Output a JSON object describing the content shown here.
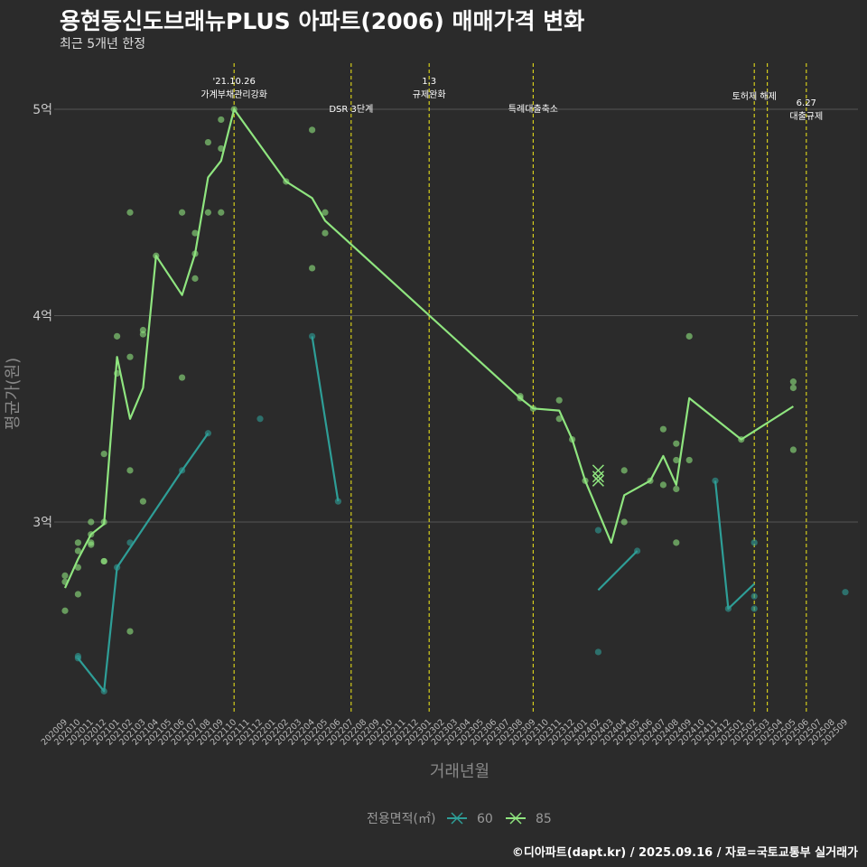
{
  "title": "용현동신도브래뉴PLUS 아파트(2006) 매매가격 변화",
  "subtitle": "최근 5개년 한정",
  "credit": "©디아파트(dapt.kr) / 2025.09.16 / 자료=국토교통부 실거래가",
  "colors": {
    "s60": "#2e9e97",
    "s85": "#8fe57f",
    "vline": "#d4cc1c",
    "grid": "#555555"
  },
  "chart_data": {
    "type": "line",
    "xlabel": "거래년월",
    "ylabel": "평균가(원)",
    "ylim": [
      2.0,
      5.3
    ],
    "yticks": [
      {
        "v": 3,
        "label": "3억"
      },
      {
        "v": 4,
        "label": "4억"
      },
      {
        "v": 5,
        "label": "5억"
      }
    ],
    "categories": [
      "202009",
      "202010",
      "202011",
      "202012",
      "202101",
      "202102",
      "202103",
      "202104",
      "202105",
      "202106",
      "202107",
      "202108",
      "202109",
      "202110",
      "202111",
      "202112",
      "202201",
      "202202",
      "202203",
      "202204",
      "202205",
      "202206",
      "202207",
      "202208",
      "202209",
      "202210",
      "202211",
      "202212",
      "202301",
      "202302",
      "202303",
      "202304",
      "202305",
      "202306",
      "202307",
      "202308",
      "202309",
      "202310",
      "202311",
      "202312",
      "202401",
      "202402",
      "202403",
      "202404",
      "202405",
      "202406",
      "202407",
      "202408",
      "202409",
      "202410",
      "202411",
      "202412",
      "202501",
      "202502",
      "202503",
      "202504",
      "202505",
      "202506",
      "202507",
      "202508",
      "202509"
    ],
    "legend": {
      "title": "전용면적(㎡)",
      "items": [
        "60",
        "85"
      ]
    },
    "series": [
      {
        "name": "60",
        "segments": [
          [
            [
              1,
              2.34
            ],
            [
              3,
              2.18
            ],
            [
              4,
              2.78
            ],
            [
              9,
              3.25
            ],
            [
              11,
              3.43
            ]
          ],
          [
            [
              19,
              3.9
            ],
            [
              21,
              3.1
            ]
          ],
          [
            [
              41,
              2.67
            ],
            [
              44,
              2.86
            ]
          ],
          [
            [
              50,
              3.2
            ],
            [
              51,
              2.58
            ],
            [
              53,
              2.7
            ]
          ]
        ],
        "points": [
          [
            1,
            2.35
          ],
          [
            1,
            2.34
          ],
          [
            3,
            2.18
          ],
          [
            4,
            2.78
          ],
          [
            5,
            2.9
          ],
          [
            9,
            3.25
          ],
          [
            11,
            3.43
          ],
          [
            15,
            3.5
          ],
          [
            19,
            3.9
          ],
          [
            21,
            3.1
          ],
          [
            41,
            2.96
          ],
          [
            41,
            2.37
          ],
          [
            44,
            2.86
          ],
          [
            50,
            3.2
          ],
          [
            51,
            2.58
          ],
          [
            53,
            2.9
          ],
          [
            53,
            2.64
          ],
          [
            53,
            2.58
          ],
          [
            60,
            2.66
          ]
        ]
      },
      {
        "name": "85",
        "segments": [
          [
            [
              0,
              2.68
            ],
            [
              1,
              2.82
            ],
            [
              2,
              2.94
            ],
            [
              3,
              2.99
            ],
            [
              4,
              3.8
            ],
            [
              5,
              3.5
            ],
            [
              6,
              3.65
            ],
            [
              7,
              4.29
            ],
            [
              9,
              4.1
            ],
            [
              10,
              4.3
            ],
            [
              11,
              4.67
            ],
            [
              12,
              4.75
            ],
            [
              13,
              5.0
            ],
            [
              17,
              4.65
            ],
            [
              19,
              4.57
            ],
            [
              20,
              4.46
            ],
            [
              35,
              3.6
            ],
            [
              36,
              3.55
            ],
            [
              38,
              3.54
            ],
            [
              39,
              3.4
            ],
            [
              40,
              3.2
            ],
            [
              42,
              2.9
            ],
            [
              43,
              3.13
            ],
            [
              45,
              3.2
            ],
            [
              46,
              3.32
            ],
            [
              47,
              3.18
            ],
            [
              48,
              3.6
            ],
            [
              52,
              3.4
            ],
            [
              56,
              3.56
            ]
          ]
        ],
        "points": [
          [
            0,
            2.74
          ],
          [
            0,
            2.71
          ],
          [
            0,
            2.57
          ],
          [
            1,
            2.9
          ],
          [
            1,
            2.86
          ],
          [
            1,
            2.78
          ],
          [
            1,
            2.65
          ],
          [
            2,
            3.0
          ],
          [
            2,
            2.94
          ],
          [
            2,
            2.9
          ],
          [
            2,
            2.89
          ],
          [
            3,
            3.33
          ],
          [
            3,
            3.0
          ],
          [
            3,
            2.81
          ],
          [
            3,
            2.81
          ],
          [
            4,
            3.9
          ],
          [
            4,
            3.72
          ],
          [
            5,
            4.5
          ],
          [
            5,
            3.8
          ],
          [
            5,
            3.25
          ],
          [
            5,
            2.47
          ],
          [
            6,
            3.93
          ],
          [
            6,
            3.91
          ],
          [
            6,
            3.1
          ],
          [
            7,
            4.29
          ],
          [
            9,
            4.5
          ],
          [
            9,
            3.7
          ],
          [
            10,
            4.4
          ],
          [
            10,
            4.3
          ],
          [
            10,
            4.18
          ],
          [
            11,
            4.84
          ],
          [
            11,
            4.5
          ],
          [
            12,
            4.95
          ],
          [
            12,
            4.81
          ],
          [
            12,
            4.5
          ],
          [
            13,
            5.0
          ],
          [
            17,
            4.65
          ],
          [
            19,
            4.9
          ],
          [
            19,
            4.23
          ],
          [
            20,
            4.5
          ],
          [
            20,
            4.4
          ],
          [
            35,
            3.61
          ],
          [
            35,
            3.6
          ],
          [
            36,
            3.55
          ],
          [
            38,
            3.59
          ],
          [
            38,
            3.5
          ],
          [
            39,
            3.4
          ],
          [
            40,
            3.2
          ],
          [
            43,
            3.25
          ],
          [
            43,
            3.0
          ],
          [
            45,
            3.2
          ],
          [
            46,
            3.45
          ],
          [
            46,
            3.18
          ],
          [
            47,
            3.38
          ],
          [
            47,
            3.3
          ],
          [
            47,
            3.16
          ],
          [
            47,
            2.9
          ],
          [
            48,
            3.9
          ],
          [
            48,
            3.3
          ],
          [
            52,
            3.4
          ],
          [
            56,
            3.68
          ],
          [
            56,
            3.65
          ],
          [
            56,
            3.35
          ]
        ],
        "x_markers": [
          [
            41,
            3.25
          ],
          [
            41,
            3.22
          ],
          [
            41,
            3.2
          ]
        ]
      }
    ],
    "annotations": [
      {
        "x": 13,
        "lines": [
          "'21.10.26",
          "가계부채관리강화"
        ],
        "level": 0
      },
      {
        "x": 22,
        "lines": [
          "DSR 3단계"
        ],
        "level": 2
      },
      {
        "x": 28,
        "lines": [
          "1.3",
          "규제완화"
        ],
        "level": 0
      },
      {
        "x": 36,
        "lines": [
          "특례대출축소"
        ],
        "level": 2
      },
      {
        "x": 53,
        "lines": [
          "토허제 해제"
        ],
        "level": 1
      },
      {
        "x": 54,
        "lines": [],
        "level": 1
      },
      {
        "x": 57,
        "lines": [
          "6.27",
          "대출규제"
        ],
        "level": 3
      }
    ]
  }
}
